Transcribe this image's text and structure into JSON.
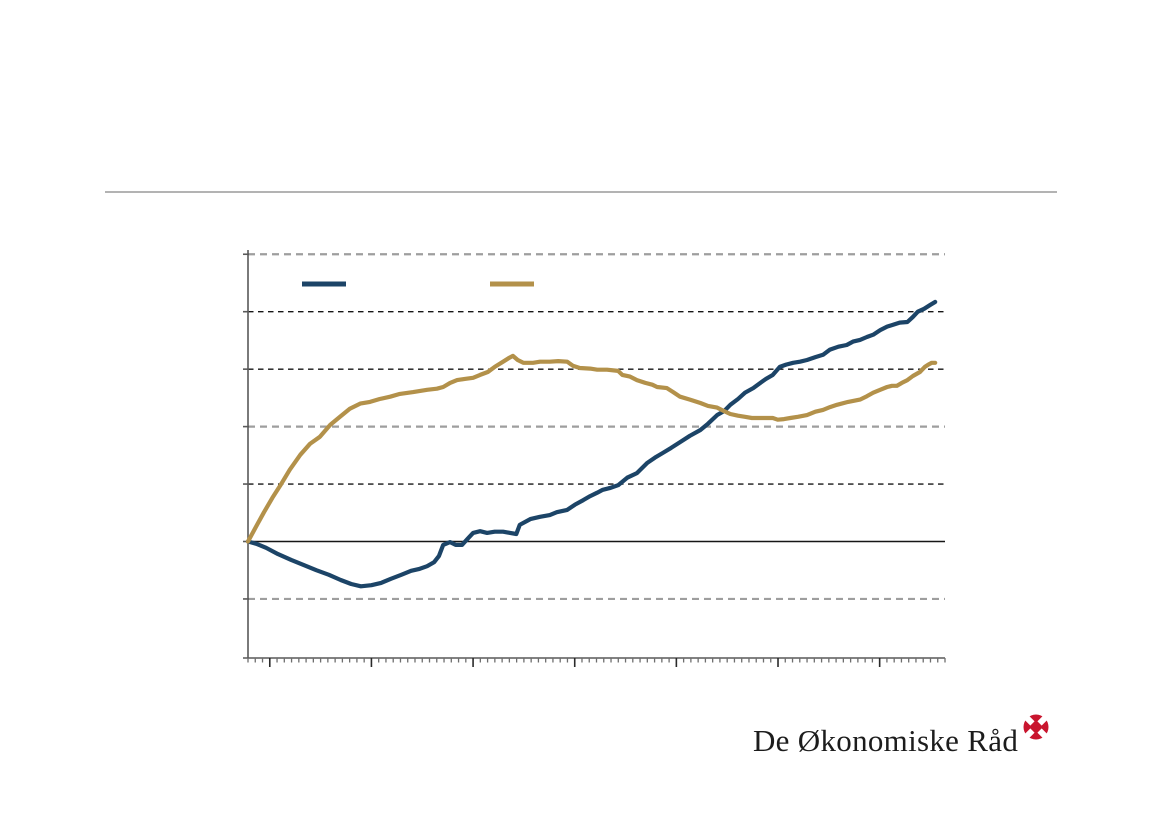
{
  "slide": {
    "background": "#ffffff"
  },
  "top_rule": {
    "color": "#b3b3b3"
  },
  "logo": {
    "text": "De Økonomiske Råd",
    "text_color": "#1c1c1c",
    "icon": "life-buoy-icon",
    "icon_color": "#c9152e"
  },
  "chart_data": {
    "type": "line",
    "title": "",
    "xlabel": "",
    "ylabel": "",
    "axis_labels_visible": false,
    "ylim": [
      -2.03,
      5.03
    ],
    "x_range_percent": [
      0,
      100
    ],
    "grid": true,
    "gridlines": [
      {
        "value": 5,
        "style": "gray-dashed"
      },
      {
        "value": 4,
        "style": "black-dashed"
      },
      {
        "value": 3,
        "style": "black-dashed"
      },
      {
        "value": 2,
        "style": "gray-dashed"
      },
      {
        "value": 1,
        "style": "black-dashed"
      },
      {
        "value": 0,
        "style": "solid-black"
      },
      {
        "value": -1,
        "style": "gray-dashed"
      }
    ],
    "x_axis": {
      "minor_tick_intervals": 96,
      "major_tick_every": 14,
      "major_tick_offset": 3,
      "tick_labels": []
    },
    "legend": {
      "position": "top-inside",
      "labels_visible": false,
      "swatch_only": true
    },
    "colors": {
      "gray_grid": "#9e9e9e",
      "black_grid": "#161616",
      "axis": "#595959"
    },
    "series": [
      {
        "name": "series-dark-blue",
        "color": "#1c4467",
        "points": [
          [
            0,
            0
          ],
          [
            1.2,
            -0.04
          ],
          [
            2.6,
            -0.11
          ],
          [
            4.3,
            -0.22
          ],
          [
            6.2,
            -0.32
          ],
          [
            8,
            -0.41
          ],
          [
            9.8,
            -0.5
          ],
          [
            11.6,
            -0.58
          ],
          [
            13.3,
            -0.67
          ],
          [
            14.8,
            -0.74
          ],
          [
            16.2,
            -0.78
          ],
          [
            17.7,
            -0.76
          ],
          [
            19.1,
            -0.72
          ],
          [
            20.5,
            -0.65
          ],
          [
            22,
            -0.58
          ],
          [
            23.4,
            -0.51
          ],
          [
            24.5,
            -0.48
          ],
          [
            25.7,
            -0.43
          ],
          [
            26.7,
            -0.36
          ],
          [
            27.4,
            -0.25
          ],
          [
            28,
            -0.06
          ],
          [
            29,
            -0.01
          ],
          [
            29.8,
            -0.06
          ],
          [
            30.7,
            -0.06
          ],
          [
            31.6,
            0.06
          ],
          [
            32.3,
            0.15
          ],
          [
            33.3,
            0.18
          ],
          [
            34.3,
            0.15
          ],
          [
            35.4,
            0.17
          ],
          [
            36.6,
            0.17
          ],
          [
            37.6,
            0.15
          ],
          [
            38.5,
            0.13
          ],
          [
            39,
            0.29
          ],
          [
            40.5,
            0.39
          ],
          [
            41.9,
            0.43
          ],
          [
            43.3,
            0.46
          ],
          [
            44.3,
            0.51
          ],
          [
            45.8,
            0.55
          ],
          [
            46.9,
            0.64
          ],
          [
            48.1,
            0.72
          ],
          [
            49.1,
            0.79
          ],
          [
            50.1,
            0.85
          ],
          [
            50.9,
            0.9
          ],
          [
            51.9,
            0.93
          ],
          [
            53.1,
            0.98
          ],
          [
            54.4,
            1.11
          ],
          [
            55.8,
            1.19
          ],
          [
            57.3,
            1.37
          ],
          [
            58.4,
            1.46
          ],
          [
            59.5,
            1.54
          ],
          [
            60.7,
            1.63
          ],
          [
            62,
            1.73
          ],
          [
            63.4,
            1.84
          ],
          [
            64.9,
            1.94
          ],
          [
            66,
            2.05
          ],
          [
            67.3,
            2.2
          ],
          [
            68.3,
            2.27
          ],
          [
            69.2,
            2.38
          ],
          [
            70.3,
            2.48
          ],
          [
            71.3,
            2.59
          ],
          [
            72.5,
            2.67
          ],
          [
            73.5,
            2.76
          ],
          [
            74.3,
            2.83
          ],
          [
            75.3,
            2.9
          ],
          [
            76.3,
            3.04
          ],
          [
            77.2,
            3.08
          ],
          [
            78.2,
            3.11
          ],
          [
            79.2,
            3.13
          ],
          [
            80.2,
            3.16
          ],
          [
            81.4,
            3.21
          ],
          [
            82.5,
            3.25
          ],
          [
            83.5,
            3.34
          ],
          [
            84.7,
            3.39
          ],
          [
            85.9,
            3.42
          ],
          [
            86.8,
            3.48
          ],
          [
            87.8,
            3.51
          ],
          [
            88.8,
            3.56
          ],
          [
            89.7,
            3.6
          ],
          [
            90.7,
            3.68
          ],
          [
            91.7,
            3.74
          ],
          [
            92.5,
            3.77
          ],
          [
            93.5,
            3.81
          ],
          [
            94.6,
            3.82
          ],
          [
            95.4,
            3.91
          ],
          [
            96.1,
            4.0
          ],
          [
            97,
            4.05
          ],
          [
            97.9,
            4.12
          ],
          [
            98.6,
            4.17
          ]
        ]
      },
      {
        "name": "series-gold",
        "color": "#b3914a",
        "points": [
          [
            0,
            0
          ],
          [
            1.2,
            0.27
          ],
          [
            2.3,
            0.51
          ],
          [
            3.5,
            0.76
          ],
          [
            4.6,
            0.97
          ],
          [
            6,
            1.25
          ],
          [
            7.5,
            1.51
          ],
          [
            8.9,
            1.7
          ],
          [
            10.3,
            1.82
          ],
          [
            11.8,
            2.03
          ],
          [
            13.2,
            2.17
          ],
          [
            14.6,
            2.31
          ],
          [
            16.1,
            2.4
          ],
          [
            17.5,
            2.43
          ],
          [
            18.9,
            2.48
          ],
          [
            20.4,
            2.52
          ],
          [
            21.8,
            2.57
          ],
          [
            23.7,
            2.6
          ],
          [
            25.7,
            2.64
          ],
          [
            27.1,
            2.66
          ],
          [
            28,
            2.69
          ],
          [
            29,
            2.76
          ],
          [
            30,
            2.81
          ],
          [
            31.1,
            2.83
          ],
          [
            32.3,
            2.85
          ],
          [
            33.3,
            2.9
          ],
          [
            34.4,
            2.95
          ],
          [
            35.4,
            3.04
          ],
          [
            36.6,
            3.13
          ],
          [
            37.5,
            3.2
          ],
          [
            38,
            3.23
          ],
          [
            38.7,
            3.16
          ],
          [
            39.5,
            3.11
          ],
          [
            40.9,
            3.11
          ],
          [
            41.9,
            3.13
          ],
          [
            43.3,
            3.13
          ],
          [
            44.5,
            3.14
          ],
          [
            45.8,
            3.13
          ],
          [
            46.6,
            3.06
          ],
          [
            47.6,
            3.02
          ],
          [
            49.1,
            3.01
          ],
          [
            50.1,
            2.99
          ],
          [
            51.5,
            2.99
          ],
          [
            53.1,
            2.97
          ],
          [
            53.7,
            2.9
          ],
          [
            54.8,
            2.87
          ],
          [
            55.8,
            2.81
          ],
          [
            57,
            2.76
          ],
          [
            58,
            2.73
          ],
          [
            58.7,
            2.69
          ],
          [
            60.1,
            2.67
          ],
          [
            61,
            2.6
          ],
          [
            62,
            2.52
          ],
          [
            63.4,
            2.47
          ],
          [
            64.9,
            2.41
          ],
          [
            66,
            2.36
          ],
          [
            67.3,
            2.33
          ],
          [
            68.3,
            2.27
          ],
          [
            69.2,
            2.22
          ],
          [
            70.3,
            2.19
          ],
          [
            71.3,
            2.17
          ],
          [
            72.3,
            2.15
          ],
          [
            73.5,
            2.15
          ],
          [
            74.3,
            2.15
          ],
          [
            75.3,
            2.15
          ],
          [
            76,
            2.12
          ],
          [
            76.9,
            2.13
          ],
          [
            77.8,
            2.15
          ],
          [
            78.9,
            2.17
          ],
          [
            80.2,
            2.2
          ],
          [
            81.4,
            2.26
          ],
          [
            82.5,
            2.29
          ],
          [
            83.5,
            2.34
          ],
          [
            84.5,
            2.38
          ],
          [
            86.1,
            2.43
          ],
          [
            87.8,
            2.47
          ],
          [
            88.8,
            2.53
          ],
          [
            89.7,
            2.59
          ],
          [
            90.7,
            2.64
          ],
          [
            91.7,
            2.69
          ],
          [
            92.4,
            2.71
          ],
          [
            93.1,
            2.71
          ],
          [
            93.8,
            2.76
          ],
          [
            94.6,
            2.81
          ],
          [
            95.4,
            2.88
          ],
          [
            96.4,
            2.95
          ],
          [
            97.1,
            3.04
          ],
          [
            97.6,
            3.08
          ],
          [
            98.1,
            3.11
          ],
          [
            98.6,
            3.11
          ]
        ]
      }
    ]
  }
}
